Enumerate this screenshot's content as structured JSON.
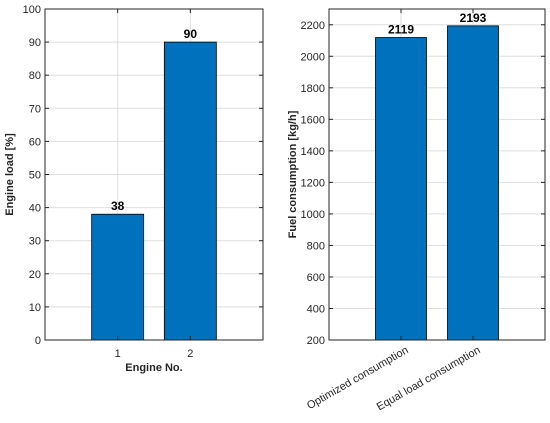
{
  "colors": {
    "bar": "#0072BD",
    "bar_edge": "#000000",
    "axis": "#262626",
    "grid": "#dedede"
  },
  "chart_data": [
    {
      "type": "bar",
      "categories": [
        "1",
        "2"
      ],
      "values": [
        38,
        90
      ],
      "data_labels": [
        "38",
        "90"
      ],
      "xlabel": "Engine No.",
      "ylabel": "Engine load [%]",
      "ylim": [
        0,
        100
      ],
      "yticks": [
        0,
        10,
        20,
        30,
        40,
        50,
        60,
        70,
        80,
        90,
        100
      ],
      "grid": true
    },
    {
      "type": "bar",
      "categories": [
        "Optimized consumption",
        "Equal load consumption"
      ],
      "values": [
        2119,
        2193
      ],
      "data_labels": [
        "2119",
        "2193"
      ],
      "xlabel": "",
      "ylabel": "Fuel consumption [kg/h]",
      "ylim": [
        200,
        2300
      ],
      "yticks": [
        200,
        400,
        600,
        800,
        1000,
        1200,
        1400,
        1600,
        1800,
        2000,
        2200
      ],
      "grid": true
    }
  ]
}
